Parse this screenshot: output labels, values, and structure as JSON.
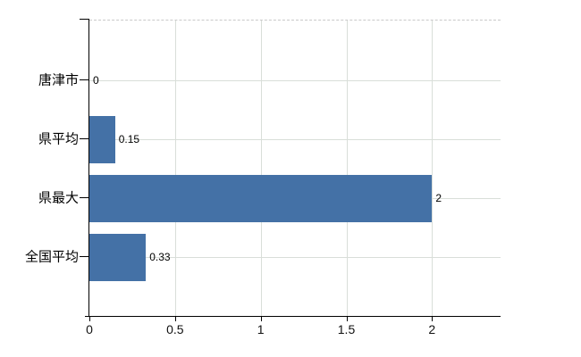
{
  "chart_data": {
    "type": "bar",
    "orientation": "horizontal",
    "title": "",
    "xlabel": "",
    "ylabel": "",
    "categories": [
      "唐津市",
      "県平均",
      "県最大",
      "全国平均"
    ],
    "values": [
      0,
      0.15,
      2,
      0.33
    ],
    "value_labels": [
      "0",
      "0.15",
      "2",
      "0.33"
    ],
    "xlim": [
      0,
      2.4
    ],
    "x_ticks": [
      0,
      0.5,
      1,
      1.5,
      2
    ],
    "x_tick_labels": [
      "0",
      "0.5",
      "1",
      "1.5",
      "2"
    ],
    "grid": true,
    "legend": false,
    "colors": {
      "bar": "#4471a6",
      "grid": "#d9ded9",
      "axis": "#000000",
      "label": "#000000",
      "plot_top_border": "#c9c9c9"
    }
  }
}
